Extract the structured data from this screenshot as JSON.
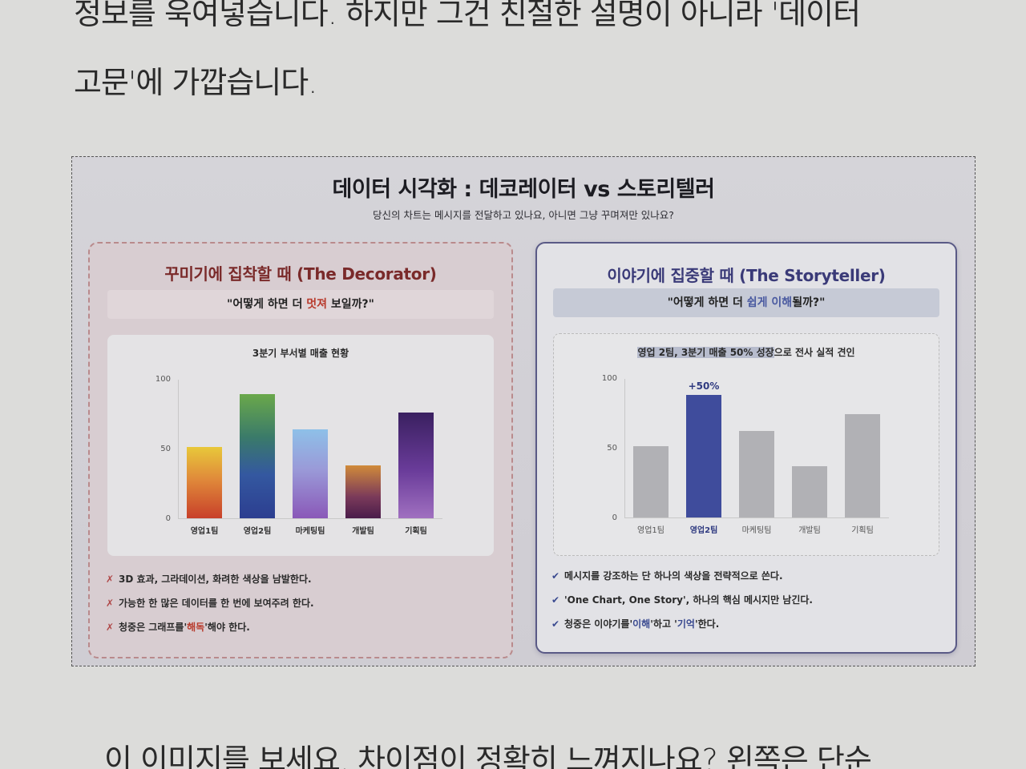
{
  "body_text": {
    "line1": "정보를 욱여넣습니다. 하지만 그건 친절한 설명이 아니라 '데이터",
    "line2": "고문'에 가깝습니다.",
    "line3": "이 이미지를 보세요. 차이점이 정확히 느껴지나요? 왼쪽은 단순"
  },
  "figure": {
    "title": "데이터 시각화 : 데코레이터 vs 스토리텔러",
    "subtitle": "당신의 차트는 메시지를 전달하고 있나요, 아니면 그냥 꾸며져만 있나요?",
    "left_panel": {
      "heading": "꾸미기에 집착할 때 (The Decorator)",
      "question_pre": "\"어떻게 하면 더 ",
      "question_highlight": "멋져",
      "question_post": " 보일까?\"",
      "chart_title": "3분기 부서별 매출 현황",
      "bullet_mark": "✗",
      "bullets": [
        "3D 효과, 그라데이션, 화려한 색상을 남발한다.",
        "가능한 한 많은 데이터를 한 번에 보여주려 한다."
      ],
      "bullet3_pre": "청중은 그래프를'",
      "bullet3_em": "해독",
      "bullet3_post": "'해야 한다.",
      "accent_color": "#7a2a2a"
    },
    "right_panel": {
      "heading": "이야기에 집중할 때 (The Storyteller)",
      "question_pre": "\"어떻게 하면 더 ",
      "question_highlight": "쉽게 이해",
      "question_post": "될까?\"",
      "chart_title_highlight": "영업 2팀, 3분기 매출 50% 성장",
      "chart_title_rest": "으로 전사 실적 견인",
      "annotation": "+50%",
      "bullet_mark": "✔",
      "bullets": [
        "메시지를 강조하는 단 하나의 색상을 전략적으로 쓴다.",
        "'One Chart, One Story', 하나의 핵심 메시지만 남긴다."
      ],
      "bullet3_pre": "청중은 이야기를'",
      "bullet3_em1": "이해",
      "bullet3_mid": "'하고 '",
      "bullet3_em2": "기억",
      "bullet3_post": "'한다.",
      "accent_color": "#3a3a78",
      "highlight_color": "#3f4c9c",
      "muted_color": "#b1b1b5"
    }
  },
  "chart_data": [
    {
      "type": "bar",
      "title": "3분기 부서별 매출 현황",
      "categories": [
        "영업1팀",
        "영업2팀",
        "마케팅팀",
        "개발팀",
        "기획팀"
      ],
      "values": [
        51,
        89,
        64,
        38,
        76
      ],
      "xlabel": "",
      "ylabel": "",
      "ylim": [
        0,
        100
      ],
      "yticks": [
        0,
        50,
        100
      ],
      "grid": false,
      "style": "gradient multicolor bars"
    },
    {
      "type": "bar",
      "title": "영업 2팀, 3분기 매출 50% 성장으로 전사 실적 견인",
      "categories": [
        "영업1팀",
        "영업2팀",
        "마케팅팀",
        "개발팀",
        "기획팀"
      ],
      "values": [
        51,
        88,
        62,
        37,
        74
      ],
      "xlabel": "",
      "ylabel": "",
      "ylim": [
        0,
        100
      ],
      "yticks": [
        0,
        50,
        100
      ],
      "grid": false,
      "highlight_index": 1,
      "annotations": [
        {
          "category": "영업2팀",
          "text": "+50%"
        }
      ]
    }
  ]
}
